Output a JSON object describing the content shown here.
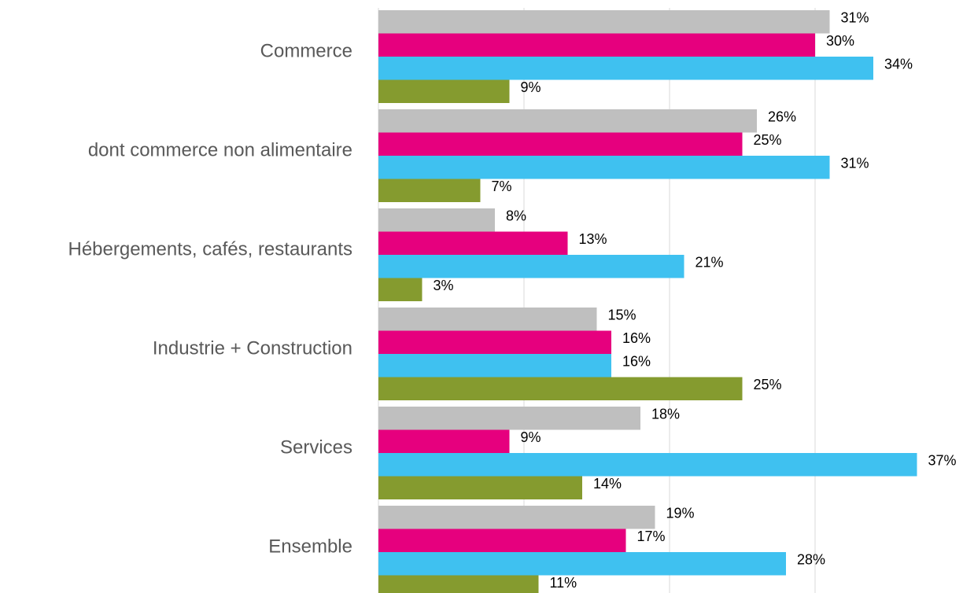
{
  "chart_data": {
    "type": "bar",
    "orientation": "horizontal",
    "categories": [
      "Commerce",
      "dont commerce non alimentaire",
      "Hébergements, cafés, restaurants",
      "Industrie + Construction",
      "Services",
      "Ensemble"
    ],
    "series": [
      {
        "color": "#bfbfbf",
        "values": [
          31,
          26,
          8,
          15,
          18,
          19
        ],
        "value_labels": [
          "31%",
          "26%",
          "8%",
          "15%",
          "18%",
          "19%"
        ]
      },
      {
        "color": "#e6007e",
        "values": [
          30,
          25,
          13,
          16,
          9,
          17
        ],
        "value_labels": [
          "30%",
          "25%",
          "13%",
          "16%",
          "9%",
          "17%"
        ]
      },
      {
        "color": "#3fc1f0",
        "values": [
          34,
          31,
          21,
          16,
          37,
          28
        ],
        "value_labels": [
          "34%",
          "31%",
          "21%",
          "16%",
          "37%",
          "28%"
        ]
      },
      {
        "color": "#859b2f",
        "values": [
          9,
          7,
          3,
          25,
          14,
          11
        ],
        "value_labels": [
          "9%",
          "7%",
          "3%",
          "25%",
          "14%",
          "11%"
        ]
      }
    ],
    "xlim": [
      0,
      40
    ],
    "xticks": [
      0,
      10,
      20,
      30
    ],
    "grid": true
  }
}
